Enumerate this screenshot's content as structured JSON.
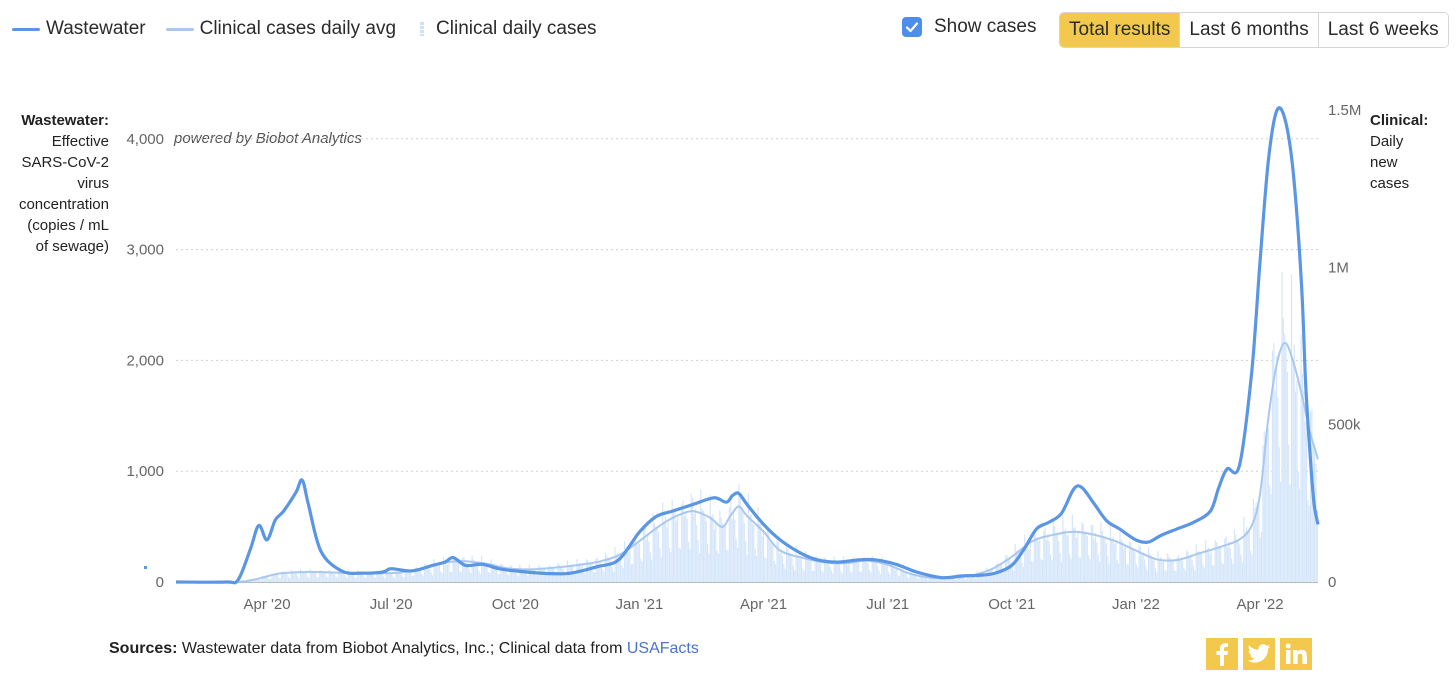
{
  "legend": {
    "wastewater": "Wastewater",
    "clinical_avg": "Clinical cases daily avg",
    "clinical_daily": "Clinical daily cases"
  },
  "controls": {
    "show_cases_label": "Show cases",
    "show_cases_checked": true,
    "ranges": [
      "Total results",
      "Last 6 months",
      "Last 6 weeks"
    ],
    "active_range": "Total results"
  },
  "axis_titles": {
    "left_bold": "Wastewater:",
    "left_rest": [
      "Effective",
      "SARS-CoV-2",
      "virus",
      "concentration",
      "(copies / mL",
      "of sewage)"
    ],
    "right_bold": "Clinical:",
    "right_rest": [
      "Daily",
      "new",
      "cases"
    ]
  },
  "watermark": "powered by Biobot Analytics",
  "sources": {
    "label": "Sources:",
    "text": " Wastewater data from Biobot Analytics, Inc.; Clinical data from ",
    "link": "USAFacts"
  },
  "colors": {
    "wastewater": "#5b96e4",
    "clinical_avg": "#a9c8f0",
    "clinical_bars": "#d6e6fa",
    "accent": "#f2c94c",
    "checkbox": "#4c8ee8",
    "grid": "#cfcfcf",
    "tick_text": "#666666"
  },
  "social_icons": [
    "facebook-icon",
    "twitter-icon",
    "linkedin-icon"
  ],
  "chart_data": {
    "type": "line",
    "x_ticks": [
      "Apr '20",
      "Jul '20",
      "Oct '20",
      "Jan '21",
      "Apr '21",
      "Jul '21",
      "Oct '21",
      "Jan '22",
      "Apr '22"
    ],
    "x_tick_months": [
      3,
      6,
      9,
      12,
      15,
      18,
      21,
      24,
      27
    ],
    "x_range_months": [
      0.8,
      28.4
    ],
    "y_left": {
      "ticks": [
        0,
        1000,
        2000,
        3000,
        4000
      ],
      "tick_labels": [
        "0",
        "1,000",
        "2,000",
        "3,000",
        "4,000"
      ],
      "range": [
        0,
        4260
      ]
    },
    "y_right": {
      "ticks": [
        0,
        500000,
        1000000,
        1500000
      ],
      "tick_labels": [
        "0",
        "500k",
        "1M",
        "1.5M"
      ],
      "range": [
        0,
        1500000
      ]
    },
    "grid": "horizontal dotted",
    "legend_position": "top-left",
    "series": [
      {
        "name": "Wastewater",
        "axis": "left",
        "points": [
          [
            0.8,
            0
          ],
          [
            2.0,
            0
          ],
          [
            2.3,
            20
          ],
          [
            2.6,
            300
          ],
          [
            2.8,
            510
          ],
          [
            3.0,
            380
          ],
          [
            3.2,
            560
          ],
          [
            3.4,
            640
          ],
          [
            3.7,
            810
          ],
          [
            3.85,
            920
          ],
          [
            4.0,
            700
          ],
          [
            4.3,
            280
          ],
          [
            4.8,
            100
          ],
          [
            5.3,
            80
          ],
          [
            5.8,
            90
          ],
          [
            6.0,
            120
          ],
          [
            6.5,
            100
          ],
          [
            7.0,
            150
          ],
          [
            7.3,
            180
          ],
          [
            7.5,
            220
          ],
          [
            7.8,
            150
          ],
          [
            8.2,
            160
          ],
          [
            8.6,
            120
          ],
          [
            9.0,
            100
          ],
          [
            9.6,
            80
          ],
          [
            10.2,
            75
          ],
          [
            10.6,
            100
          ],
          [
            11.0,
            140
          ],
          [
            11.5,
            200
          ],
          [
            12.0,
            450
          ],
          [
            12.4,
            590
          ],
          [
            12.8,
            640
          ],
          [
            13.3,
            700
          ],
          [
            13.8,
            760
          ],
          [
            14.1,
            720
          ],
          [
            14.25,
            780
          ],
          [
            14.4,
            800
          ],
          [
            14.6,
            700
          ],
          [
            15.0,
            520
          ],
          [
            15.4,
            380
          ],
          [
            15.9,
            260
          ],
          [
            16.3,
            200
          ],
          [
            16.8,
            180
          ],
          [
            17.3,
            200
          ],
          [
            17.7,
            200
          ],
          [
            18.2,
            160
          ],
          [
            18.7,
            90
          ],
          [
            19.3,
            40
          ],
          [
            19.8,
            55
          ],
          [
            20.2,
            60
          ],
          [
            20.6,
            80
          ],
          [
            21.0,
            150
          ],
          [
            21.3,
            300
          ],
          [
            21.6,
            480
          ],
          [
            21.9,
            540
          ],
          [
            22.2,
            620
          ],
          [
            22.5,
            840
          ],
          [
            22.7,
            850
          ],
          [
            23.0,
            700
          ],
          [
            23.3,
            550
          ],
          [
            23.6,
            480
          ],
          [
            24.0,
            380
          ],
          [
            24.3,
            360
          ],
          [
            24.6,
            420
          ],
          [
            25.0,
            480
          ],
          [
            25.4,
            540
          ],
          [
            25.8,
            640
          ],
          [
            26.0,
            850
          ],
          [
            26.2,
            1020
          ],
          [
            26.5,
            1050
          ],
          [
            26.8,
            1900
          ],
          [
            27.0,
            2900
          ],
          [
            27.2,
            3800
          ],
          [
            27.4,
            4250
          ],
          [
            27.6,
            4180
          ],
          [
            27.8,
            3700
          ],
          [
            28.0,
            2700
          ],
          [
            28.1,
            1800
          ],
          [
            28.2,
            1200
          ],
          [
            28.3,
            720
          ],
          [
            28.4,
            520
          ]
        ]
      },
      {
        "name": "Clinical cases daily avg",
        "axis": "right",
        "points": [
          [
            0.8,
            0
          ],
          [
            2.2,
            0
          ],
          [
            2.7,
            8000
          ],
          [
            3.3,
            27000
          ],
          [
            4.0,
            32000
          ],
          [
            4.7,
            30000
          ],
          [
            5.5,
            28000
          ],
          [
            6.2,
            30000
          ],
          [
            6.8,
            45000
          ],
          [
            7.3,
            62000
          ],
          [
            7.8,
            66000
          ],
          [
            8.3,
            58000
          ],
          [
            8.8,
            44000
          ],
          [
            9.3,
            40000
          ],
          [
            9.8,
            44000
          ],
          [
            10.4,
            52000
          ],
          [
            11.0,
            64000
          ],
          [
            11.5,
            85000
          ],
          [
            12.0,
            130000
          ],
          [
            12.5,
            180000
          ],
          [
            12.9,
            210000
          ],
          [
            13.3,
            225000
          ],
          [
            13.7,
            205000
          ],
          [
            14.0,
            175000
          ],
          [
            14.2,
            210000
          ],
          [
            14.4,
            240000
          ],
          [
            14.6,
            210000
          ],
          [
            15.0,
            160000
          ],
          [
            15.4,
            100000
          ],
          [
            16.0,
            75000
          ],
          [
            16.5,
            62000
          ],
          [
            17.0,
            60000
          ],
          [
            17.5,
            68000
          ],
          [
            18.0,
            55000
          ],
          [
            18.5,
            28000
          ],
          [
            19.0,
            14000
          ],
          [
            19.5,
            12000
          ],
          [
            20.0,
            20000
          ],
          [
            20.5,
            40000
          ],
          [
            21.0,
            80000
          ],
          [
            21.5,
            130000
          ],
          [
            22.0,
            150000
          ],
          [
            22.5,
            160000
          ],
          [
            23.0,
            150000
          ],
          [
            23.5,
            130000
          ],
          [
            24.0,
            100000
          ],
          [
            24.5,
            72000
          ],
          [
            25.0,
            70000
          ],
          [
            25.5,
            90000
          ],
          [
            26.0,
            110000
          ],
          [
            26.5,
            135000
          ],
          [
            26.8,
            180000
          ],
          [
            27.0,
            280000
          ],
          [
            27.2,
            520000
          ],
          [
            27.4,
            690000
          ],
          [
            27.6,
            760000
          ],
          [
            27.8,
            700000
          ],
          [
            28.0,
            600000
          ],
          [
            28.2,
            480000
          ],
          [
            28.4,
            390000
          ]
        ]
      },
      {
        "name": "Clinical daily cases",
        "axis": "right",
        "type": "bar",
        "note_values_follow_daily_avg_with_weekly_variation": false
      }
    ]
  }
}
